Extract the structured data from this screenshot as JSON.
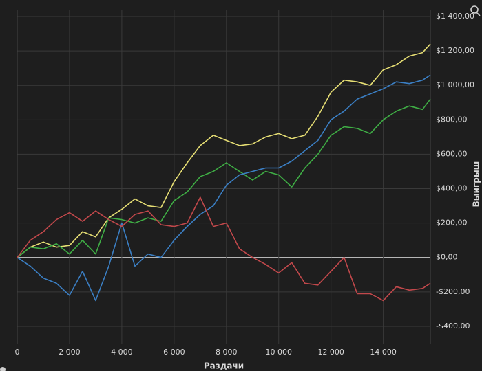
{
  "chart_data": {
    "type": "line",
    "x_label": "Раздачи",
    "y_label": "Выигрыш",
    "x": [
      0,
      500,
      1000,
      1500,
      2000,
      2500,
      3000,
      3500,
      4000,
      4500,
      5000,
      5500,
      6000,
      6500,
      7000,
      7500,
      8000,
      8500,
      9000,
      9500,
      10000,
      10500,
      11000,
      11500,
      12000,
      12500,
      13000,
      13500,
      14000,
      14500,
      15000,
      15500,
      15800
    ],
    "series": [
      {
        "color": "#e6de74",
        "values": [
          0,
          60,
          90,
          60,
          70,
          150,
          120,
          230,
          280,
          340,
          300,
          290,
          440,
          550,
          650,
          710,
          680,
          650,
          660,
          700,
          720,
          690,
          710,
          820,
          960,
          1030,
          1020,
          1000,
          1090,
          1120,
          1170,
          1190,
          1240
        ]
      },
      {
        "color": "#3fae45",
        "values": [
          0,
          60,
          50,
          80,
          20,
          100,
          20,
          230,
          220,
          200,
          230,
          210,
          330,
          380,
          470,
          500,
          550,
          500,
          450,
          500,
          480,
          410,
          520,
          600,
          710,
          760,
          750,
          720,
          800,
          850,
          880,
          860,
          920
        ]
      },
      {
        "color": "#3b7fc4",
        "values": [
          0,
          -50,
          -120,
          -150,
          -220,
          -80,
          -250,
          -50,
          200,
          -50,
          20,
          0,
          100,
          180,
          250,
          300,
          420,
          480,
          500,
          520,
          520,
          560,
          620,
          680,
          800,
          850,
          920,
          950,
          980,
          1020,
          1010,
          1030,
          1060
        ]
      },
      {
        "color": "#c2484b",
        "values": [
          0,
          100,
          150,
          220,
          260,
          210,
          270,
          220,
          180,
          250,
          270,
          190,
          180,
          200,
          350,
          180,
          200,
          50,
          0,
          -40,
          -90,
          -30,
          -150,
          -160,
          -80,
          0,
          -210,
          -210,
          -250,
          -170,
          -190,
          -180,
          -150
        ]
      }
    ],
    "xlim": [
      0,
      15800
    ],
    "ylim": [
      -500,
      1440
    ],
    "xticks": [
      0,
      {
        "value": 2000,
        "label": "2 000"
      },
      {
        "value": 4000,
        "label": "4 000"
      },
      {
        "value": 6000,
        "label": "6 000"
      },
      {
        "value": 8000,
        "label": "8 000"
      },
      {
        "value": 10000,
        "label": "10 000"
      },
      {
        "value": 12000,
        "label": "12 000"
      },
      {
        "value": 14000,
        "label": "14 000"
      }
    ],
    "yticks": [
      {
        "value": -400,
        "label": "-$400,00"
      },
      {
        "value": -200,
        "label": "-$200,00"
      },
      {
        "value": 0,
        "label": "$0,00"
      },
      {
        "value": 200,
        "label": "$200,00"
      },
      {
        "value": 400,
        "label": "$400,00"
      },
      {
        "value": 600,
        "label": "$600,00"
      },
      {
        "value": 800,
        "label": "$800,00"
      },
      {
        "value": 1000,
        "label": "$1 000,00"
      },
      {
        "value": 1200,
        "label": "$1 200,00"
      },
      {
        "value": 1400,
        "label": "$1 400,00"
      }
    ],
    "grid": true
  }
}
